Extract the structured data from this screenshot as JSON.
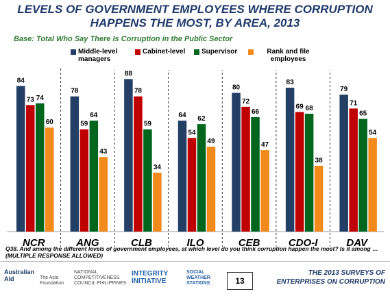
{
  "chart_data": {
    "type": "bar",
    "title": "LEVELS OF GOVERNMENT EMPLOYEES WHERE CORRUPTION HAPPENS THE MOST, BY AREA, 2013",
    "subtitle": "Base: Total Who Say There Is Corruption in the Public Sector",
    "categories": [
      "NCR",
      "ANG",
      "CLB",
      "ILO",
      "CEB",
      "CDO-I",
      "DAV"
    ],
    "series": [
      {
        "name": "Middle-level managers",
        "color": "#243f66",
        "values": [
          84,
          78,
          88,
          64,
          80,
          83,
          79
        ]
      },
      {
        "name": "Cabinet-level",
        "color": "#c00000",
        "values": [
          73,
          59,
          78,
          54,
          72,
          69,
          71
        ]
      },
      {
        "name": "Supervisor",
        "color": "#00661e",
        "values": [
          74,
          64,
          59,
          62,
          66,
          68,
          65
        ]
      },
      {
        "name": "Rank and file employees",
        "color": "#f28a1c",
        "values": [
          60,
          43,
          34,
          49,
          47,
          38,
          54
        ]
      }
    ],
    "ylim": [
      0,
      100
    ],
    "note": "Q38. And among the different levels of government employees, at which level do you think corruption happen the most? Is it among … (MULTIPLE RESPONSE ALLOWED)"
  },
  "footer": {
    "page_number": "13",
    "survey": "THE 2013 SURVEYS OF ENTERPRISES ON CORRUPTION",
    "logos": [
      "Australian Aid",
      "The Asia Foundation",
      "NATIONAL COMPETITIVENESS COUNCIL PHILIPPINES",
      "INTEGRITY INITIATIVE",
      "SOCIAL WEATHER STATIONS"
    ]
  }
}
